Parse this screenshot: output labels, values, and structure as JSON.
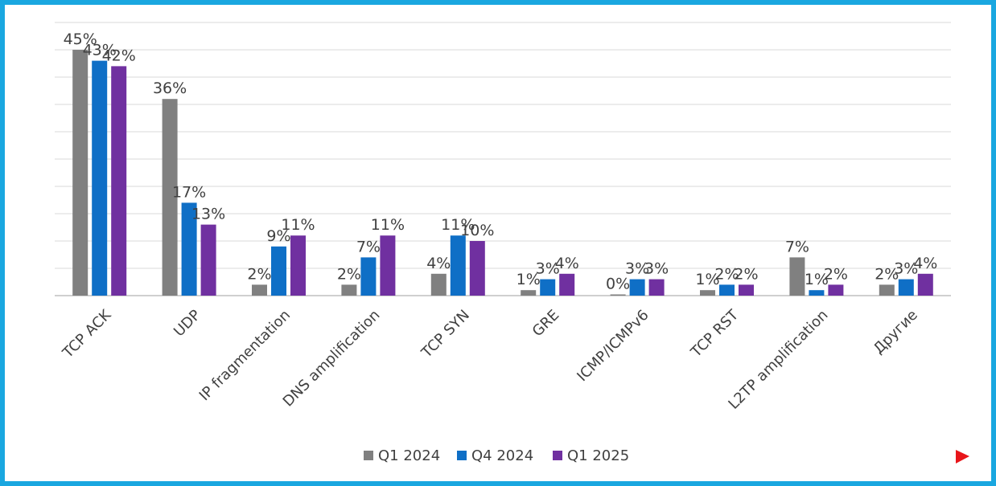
{
  "colors": {
    "frame": "#1aa7e0",
    "grid": "#d9d9d9",
    "text": "#404040",
    "arrow": "#e8151a"
  },
  "icons": {
    "next": "red-triangle-arrow"
  },
  "chart_data": {
    "type": "bar",
    "categories": [
      "TCP ACK",
      "UDP",
      "IP fragmentation",
      "DNS amplification",
      "TCP SYN",
      "GRE",
      "ICMP/ICMPv6",
      "TCP RST",
      "L2TP amplification",
      "Другие"
    ],
    "series": [
      {
        "name": "Q1 2024",
        "color": "#808080",
        "values": [
          45,
          36,
          2,
          2,
          4,
          1,
          0,
          1,
          7,
          2
        ]
      },
      {
        "name": "Q4 2024",
        "color": "#0f6fc6",
        "values": [
          43,
          17,
          9,
          7,
          11,
          3,
          3,
          2,
          1,
          3
        ]
      },
      {
        "name": "Q1 2025",
        "color": "#7030a0",
        "values": [
          42,
          13,
          11,
          11,
          10,
          4,
          3,
          2,
          2,
          4
        ]
      }
    ],
    "labels": [
      [
        "45%",
        "36%",
        "2%",
        "2%",
        "4%",
        "1%",
        "0%",
        "1%",
        "7%",
        "2%"
      ],
      [
        "43%",
        "17%",
        "9%",
        "7%",
        "11%",
        "3%",
        "3%",
        "2%",
        "1%",
        "3%"
      ],
      [
        "42%",
        "13%",
        "11%",
        "11%",
        "10%",
        "4%",
        "3%",
        "2%",
        "2%",
        "4%"
      ]
    ],
    "ylim": [
      0,
      45
    ],
    "grid": true,
    "legend": "bottom"
  }
}
